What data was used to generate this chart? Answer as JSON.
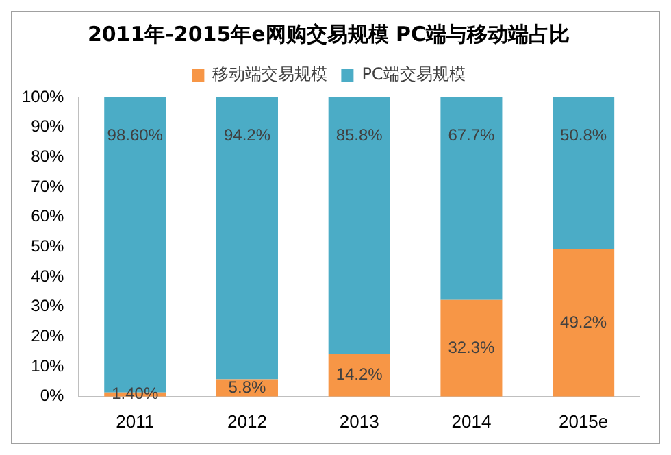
{
  "chart_data": {
    "type": "bar",
    "title": "2011年-2015年e网购交易规模 PC端与移动端占比",
    "categories": [
      "2011",
      "2012",
      "2013",
      "2014",
      "2015e"
    ],
    "stacked": true,
    "legend": "top",
    "grid": false,
    "series": [
      {
        "name": "移动端交易规模",
        "color": "#f79646",
        "values": [
          1.4,
          5.8,
          14.2,
          32.3,
          49.2
        ],
        "value_labels": [
          "1.40%",
          "5.8%",
          "14.2%",
          "32.3%",
          "49.2%"
        ]
      },
      {
        "name": "PC端交易规模",
        "color": "#4bacc6",
        "values": [
          98.6,
          94.2,
          85.8,
          67.7,
          50.8
        ],
        "value_labels": [
          "98.60%",
          "94.2%",
          "85.8%",
          "67.7%",
          "50.8%"
        ]
      }
    ],
    "ylim": [
      0,
      100
    ],
    "yticks": [
      {
        "value": 0,
        "label": "0%"
      },
      {
        "value": 10,
        "label": "10%"
      },
      {
        "value": 20,
        "label": "20%"
      },
      {
        "value": 30,
        "label": "30%"
      },
      {
        "value": 40,
        "label": "40%"
      },
      {
        "value": 50,
        "label": "50%"
      },
      {
        "value": 60,
        "label": "60%"
      },
      {
        "value": 70,
        "label": "70%"
      },
      {
        "value": 80,
        "label": "80%"
      },
      {
        "value": 90,
        "label": "90%"
      },
      {
        "value": 100,
        "label": "100%"
      }
    ]
  }
}
